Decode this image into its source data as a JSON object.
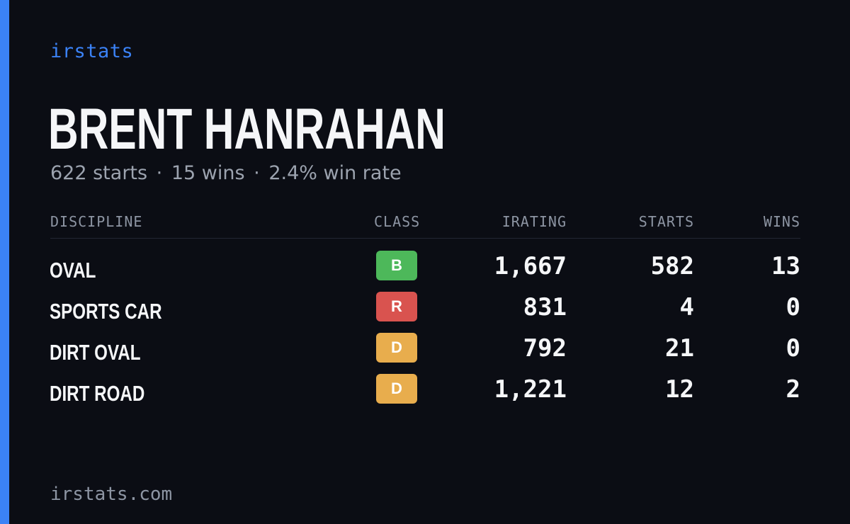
{
  "brand": "irstats",
  "player": {
    "name": "BRENT HANRAHAN",
    "starts_text": "622 starts",
    "wins_text": "15 wins",
    "win_rate_text": "2.4% win rate",
    "separator": "·"
  },
  "table": {
    "headers": {
      "discipline": "DISCIPLINE",
      "class": "CLASS",
      "irating": "IRATING",
      "starts": "STARTS",
      "wins": "WINS"
    },
    "rows": [
      {
        "discipline": "OVAL",
        "class": "B",
        "class_color": "#4db85a",
        "irating": "1,667",
        "starts": "582",
        "wins": "13"
      },
      {
        "discipline": "SPORTS CAR",
        "class": "R",
        "class_color": "#d9534f",
        "irating": "831",
        "starts": "4",
        "wins": "0"
      },
      {
        "discipline": "DIRT OVAL",
        "class": "D",
        "class_color": "#e8ad4d",
        "irating": "792",
        "starts": "21",
        "wins": "0"
      },
      {
        "discipline": "DIRT ROAD",
        "class": "D",
        "class_color": "#e8ad4d",
        "irating": "1,221",
        "starts": "12",
        "wins": "2"
      }
    ]
  },
  "footer": "irstats.com",
  "colors": {
    "accent": "#3b82f6",
    "background": "#0b0d14"
  }
}
